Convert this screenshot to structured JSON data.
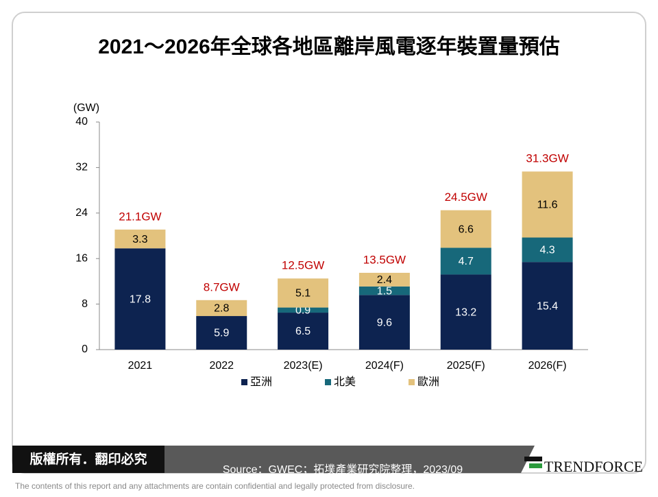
{
  "chart_data": {
    "type": "stacked-bar",
    "title": "2021～2026年全球各地區離岸風電逐年裝置量預估",
    "ylabel": "(GW)",
    "categories": [
      "2021",
      "2022",
      "2023(E)",
      "2024(F)",
      "2025(F)",
      "2026(F)"
    ],
    "series": [
      {
        "name": "亞洲",
        "color": "#0d2350",
        "label_color": "#ffffff",
        "values": [
          17.8,
          5.9,
          6.5,
          9.6,
          13.2,
          15.4
        ]
      },
      {
        "name": "北美",
        "color": "#17687a",
        "label_color": "#ffffff",
        "values": [
          null,
          null,
          0.9,
          1.5,
          4.7,
          4.3
        ]
      },
      {
        "name": "歐洲",
        "color": "#e3c27d",
        "label_color": "#000000",
        "values": [
          3.3,
          2.8,
          5.1,
          2.4,
          6.6,
          11.6
        ]
      }
    ],
    "totals": {
      "color": "#c00000",
      "values": [
        21.1,
        8.7,
        12.5,
        13.5,
        24.5,
        31.3
      ],
      "value_labels": [
        "21.1GW",
        "8.7GW",
        "12.5GW",
        "13.5GW",
        "24.5GW",
        "31.3GW"
      ]
    },
    "ylim": [
      0,
      40
    ],
    "yticks": [
      0,
      8,
      16,
      24,
      32,
      40
    ],
    "grid": false,
    "legend": "bottom"
  },
  "footer": {
    "copyright": "版權所有．翻印必究",
    "source": "Source：GWEC；拓墣產業研究院整理，2023/09",
    "logo": "TRENDFORCE",
    "disclaimer": "The contents of this report and any attachments are contain confidential and legally protected from disclosure."
  }
}
